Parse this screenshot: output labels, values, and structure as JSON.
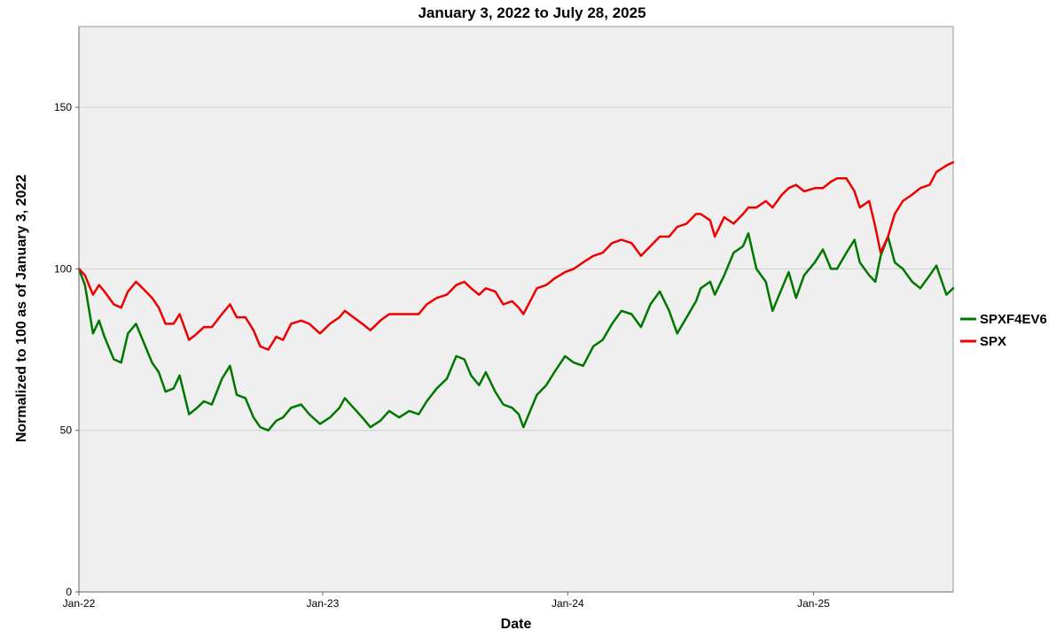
{
  "chart_data": {
    "type": "line",
    "title": "January 3, 2022 to July 28, 2025",
    "xlabel": "Date",
    "ylabel": "Normalized to 100 as of January 3, 2022",
    "ylim": [
      0,
      175
    ],
    "xlim": [
      "2022-01-03",
      "2025-07-28"
    ],
    "y_ticks": [
      0,
      50,
      100,
      150
    ],
    "x_ticks": [
      {
        "date": "2022-01-01",
        "label": "Jan-22"
      },
      {
        "date": "2023-01-01",
        "label": "Jan-23"
      },
      {
        "date": "2024-01-01",
        "label": "Jan-24"
      },
      {
        "date": "2025-01-01",
        "label": "Jan-25"
      }
    ],
    "grid": "horizontal",
    "legend_position": "right",
    "series": [
      {
        "name": "SPXF4EV6",
        "color": "#007700",
        "points": [
          [
            "2022-01-03",
            100
          ],
          [
            "2022-01-12",
            95
          ],
          [
            "2022-01-24",
            80
          ],
          [
            "2022-02-02",
            84
          ],
          [
            "2022-02-10",
            79
          ],
          [
            "2022-02-24",
            72
          ],
          [
            "2022-03-07",
            71
          ],
          [
            "2022-03-17",
            80
          ],
          [
            "2022-03-29",
            83
          ],
          [
            "2022-04-08",
            78
          ],
          [
            "2022-04-22",
            71
          ],
          [
            "2022-05-02",
            68
          ],
          [
            "2022-05-12",
            62
          ],
          [
            "2022-05-24",
            63
          ],
          [
            "2022-06-02",
            67
          ],
          [
            "2022-06-16",
            55
          ],
          [
            "2022-06-28",
            57
          ],
          [
            "2022-07-08",
            59
          ],
          [
            "2022-07-20",
            58
          ],
          [
            "2022-08-04",
            66
          ],
          [
            "2022-08-16",
            70
          ],
          [
            "2022-08-26",
            61
          ],
          [
            "2022-09-08",
            60
          ],
          [
            "2022-09-20",
            54
          ],
          [
            "2022-09-30",
            51
          ],
          [
            "2022-10-12",
            50
          ],
          [
            "2022-10-24",
            53
          ],
          [
            "2022-11-03",
            54
          ],
          [
            "2022-11-15",
            57
          ],
          [
            "2022-11-30",
            58
          ],
          [
            "2022-12-12",
            55
          ],
          [
            "2022-12-28",
            52
          ],
          [
            "2023-01-12",
            54
          ],
          [
            "2023-01-26",
            57
          ],
          [
            "2023-02-03",
            60
          ],
          [
            "2023-02-16",
            57
          ],
          [
            "2023-03-01",
            54
          ],
          [
            "2023-03-13",
            51
          ],
          [
            "2023-03-28",
            53
          ],
          [
            "2023-04-10",
            56
          ],
          [
            "2023-04-25",
            54
          ],
          [
            "2023-05-10",
            56
          ],
          [
            "2023-05-24",
            55
          ],
          [
            "2023-06-05",
            59
          ],
          [
            "2023-06-20",
            63
          ],
          [
            "2023-07-05",
            66
          ],
          [
            "2023-07-19",
            73
          ],
          [
            "2023-07-31",
            72
          ],
          [
            "2023-08-10",
            67
          ],
          [
            "2023-08-22",
            64
          ],
          [
            "2023-09-01",
            68
          ],
          [
            "2023-09-15",
            62
          ],
          [
            "2023-09-27",
            58
          ],
          [
            "2023-10-10",
            57
          ],
          [
            "2023-10-20",
            55
          ],
          [
            "2023-10-27",
            51
          ],
          [
            "2023-11-06",
            56
          ],
          [
            "2023-11-16",
            61
          ],
          [
            "2023-11-30",
            64
          ],
          [
            "2023-12-12",
            68
          ],
          [
            "2023-12-28",
            73
          ],
          [
            "2024-01-10",
            71
          ],
          [
            "2024-01-24",
            70
          ],
          [
            "2024-02-08",
            76
          ],
          [
            "2024-02-22",
            78
          ],
          [
            "2024-03-07",
            83
          ],
          [
            "2024-03-21",
            87
          ],
          [
            "2024-04-05",
            86
          ],
          [
            "2024-04-19",
            82
          ],
          [
            "2024-05-03",
            89
          ],
          [
            "2024-05-17",
            93
          ],
          [
            "2024-05-31",
            87
          ],
          [
            "2024-06-12",
            80
          ],
          [
            "2024-06-26",
            85
          ],
          [
            "2024-07-10",
            90
          ],
          [
            "2024-07-17",
            94
          ],
          [
            "2024-07-31",
            96
          ],
          [
            "2024-08-07",
            92
          ],
          [
            "2024-08-21",
            98
          ],
          [
            "2024-09-04",
            105
          ],
          [
            "2024-09-18",
            107
          ],
          [
            "2024-09-26",
            111
          ],
          [
            "2024-10-08",
            100
          ],
          [
            "2024-10-22",
            96
          ],
          [
            "2024-11-01",
            87
          ],
          [
            "2024-11-15",
            94
          ],
          [
            "2024-11-25",
            99
          ],
          [
            "2024-12-06",
            91
          ],
          [
            "2024-12-18",
            98
          ],
          [
            "2025-01-03",
            102
          ],
          [
            "2025-01-15",
            106
          ],
          [
            "2025-01-27",
            100
          ],
          [
            "2025-02-05",
            100
          ],
          [
            "2025-02-19",
            105
          ],
          [
            "2025-03-03",
            109
          ],
          [
            "2025-03-11",
            102
          ],
          [
            "2025-03-25",
            98
          ],
          [
            "2025-04-03",
            96
          ],
          [
            "2025-04-11",
            104
          ],
          [
            "2025-04-22",
            110
          ],
          [
            "2025-05-02",
            102
          ],
          [
            "2025-05-14",
            100
          ],
          [
            "2025-05-28",
            96
          ],
          [
            "2025-06-09",
            94
          ],
          [
            "2025-06-23",
            98
          ],
          [
            "2025-07-03",
            101
          ],
          [
            "2025-07-18",
            92
          ],
          [
            "2025-07-28",
            94
          ]
        ]
      },
      {
        "name": "SPX",
        "color": "#ee0000",
        "points": [
          [
            "2022-01-03",
            100
          ],
          [
            "2022-01-12",
            98
          ],
          [
            "2022-01-24",
            92
          ],
          [
            "2022-02-02",
            95
          ],
          [
            "2022-02-10",
            93
          ],
          [
            "2022-02-24",
            89
          ],
          [
            "2022-03-07",
            88
          ],
          [
            "2022-03-17",
            93
          ],
          [
            "2022-03-29",
            96
          ],
          [
            "2022-04-08",
            94
          ],
          [
            "2022-04-22",
            91
          ],
          [
            "2022-05-02",
            88
          ],
          [
            "2022-05-12",
            83
          ],
          [
            "2022-05-24",
            83
          ],
          [
            "2022-06-02",
            86
          ],
          [
            "2022-06-16",
            78
          ],
          [
            "2022-06-28",
            80
          ],
          [
            "2022-07-08",
            82
          ],
          [
            "2022-07-20",
            82
          ],
          [
            "2022-08-04",
            86
          ],
          [
            "2022-08-16",
            89
          ],
          [
            "2022-08-26",
            85
          ],
          [
            "2022-09-08",
            85
          ],
          [
            "2022-09-20",
            81
          ],
          [
            "2022-09-30",
            76
          ],
          [
            "2022-10-12",
            75
          ],
          [
            "2022-10-24",
            79
          ],
          [
            "2022-11-03",
            78
          ],
          [
            "2022-11-15",
            83
          ],
          [
            "2022-11-30",
            84
          ],
          [
            "2022-12-12",
            83
          ],
          [
            "2022-12-28",
            80
          ],
          [
            "2023-01-12",
            83
          ],
          [
            "2023-01-26",
            85
          ],
          [
            "2023-02-03",
            87
          ],
          [
            "2023-02-16",
            85
          ],
          [
            "2023-03-01",
            83
          ],
          [
            "2023-03-13",
            81
          ],
          [
            "2023-03-28",
            84
          ],
          [
            "2023-04-10",
            86
          ],
          [
            "2023-04-25",
            86
          ],
          [
            "2023-05-10",
            86
          ],
          [
            "2023-05-24",
            86
          ],
          [
            "2023-06-05",
            89
          ],
          [
            "2023-06-20",
            91
          ],
          [
            "2023-07-05",
            92
          ],
          [
            "2023-07-19",
            95
          ],
          [
            "2023-07-31",
            96
          ],
          [
            "2023-08-10",
            94
          ],
          [
            "2023-08-22",
            92
          ],
          [
            "2023-09-01",
            94
          ],
          [
            "2023-09-15",
            93
          ],
          [
            "2023-09-27",
            89
          ],
          [
            "2023-10-10",
            90
          ],
          [
            "2023-10-20",
            88
          ],
          [
            "2023-10-27",
            86
          ],
          [
            "2023-11-06",
            90
          ],
          [
            "2023-11-16",
            94
          ],
          [
            "2023-11-30",
            95
          ],
          [
            "2023-12-12",
            97
          ],
          [
            "2023-12-28",
            99
          ],
          [
            "2024-01-10",
            100
          ],
          [
            "2024-01-24",
            102
          ],
          [
            "2024-02-08",
            104
          ],
          [
            "2024-02-22",
            105
          ],
          [
            "2024-03-07",
            108
          ],
          [
            "2024-03-21",
            109
          ],
          [
            "2024-04-05",
            108
          ],
          [
            "2024-04-19",
            104
          ],
          [
            "2024-05-03",
            107
          ],
          [
            "2024-05-17",
            110
          ],
          [
            "2024-05-31",
            110
          ],
          [
            "2024-06-12",
            113
          ],
          [
            "2024-06-26",
            114
          ],
          [
            "2024-07-10",
            117
          ],
          [
            "2024-07-17",
            117
          ],
          [
            "2024-07-31",
            115
          ],
          [
            "2024-08-07",
            110
          ],
          [
            "2024-08-21",
            116
          ],
          [
            "2024-09-04",
            114
          ],
          [
            "2024-09-18",
            117
          ],
          [
            "2024-09-26",
            119
          ],
          [
            "2024-10-08",
            119
          ],
          [
            "2024-10-22",
            121
          ],
          [
            "2024-11-01",
            119
          ],
          [
            "2024-11-15",
            123
          ],
          [
            "2024-11-25",
            125
          ],
          [
            "2024-12-06",
            126
          ],
          [
            "2024-12-18",
            124
          ],
          [
            "2025-01-03",
            125
          ],
          [
            "2025-01-15",
            125
          ],
          [
            "2025-01-27",
            127
          ],
          [
            "2025-02-05",
            128
          ],
          [
            "2025-02-19",
            128
          ],
          [
            "2025-03-03",
            124
          ],
          [
            "2025-03-11",
            119
          ],
          [
            "2025-03-25",
            121
          ],
          [
            "2025-04-03",
            113
          ],
          [
            "2025-04-11",
            105
          ],
          [
            "2025-04-22",
            110
          ],
          [
            "2025-05-02",
            117
          ],
          [
            "2025-05-14",
            121
          ],
          [
            "2025-05-28",
            123
          ],
          [
            "2025-06-09",
            125
          ],
          [
            "2025-06-23",
            126
          ],
          [
            "2025-07-03",
            130
          ],
          [
            "2025-07-18",
            132
          ],
          [
            "2025-07-28",
            133
          ]
        ]
      }
    ]
  }
}
